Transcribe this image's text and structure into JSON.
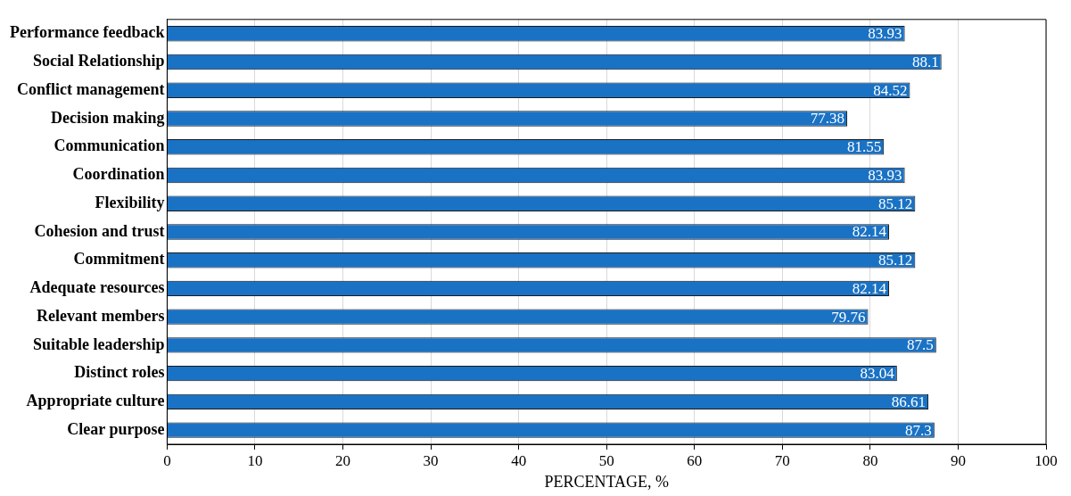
{
  "chart_data": {
    "type": "bar",
    "orientation": "horizontal",
    "xlabel": "PERCENTAGE, %",
    "categories": [
      "Performance feedback",
      "Social Relationship",
      "Conflict management",
      "Decision making",
      "Communication",
      "Coordination",
      "Flexibility",
      "Cohesion and trust",
      "Commitment",
      "Adequate resources",
      "Relevant members",
      "Suitable leadership",
      "Distinct roles",
      "Appropriate culture",
      "Clear purpose"
    ],
    "values": [
      83.93,
      88.1,
      84.52,
      77.38,
      81.55,
      83.93,
      85.12,
      82.14,
      85.12,
      82.14,
      79.76,
      87.5,
      83.04,
      86.61,
      87.3
    ],
    "color": "#1a72c4",
    "xlim": [
      0,
      100
    ],
    "xticks": [
      0,
      10,
      20,
      30,
      40,
      50,
      60,
      70,
      80,
      90,
      100
    ],
    "grid": "x",
    "data_labels": true
  }
}
